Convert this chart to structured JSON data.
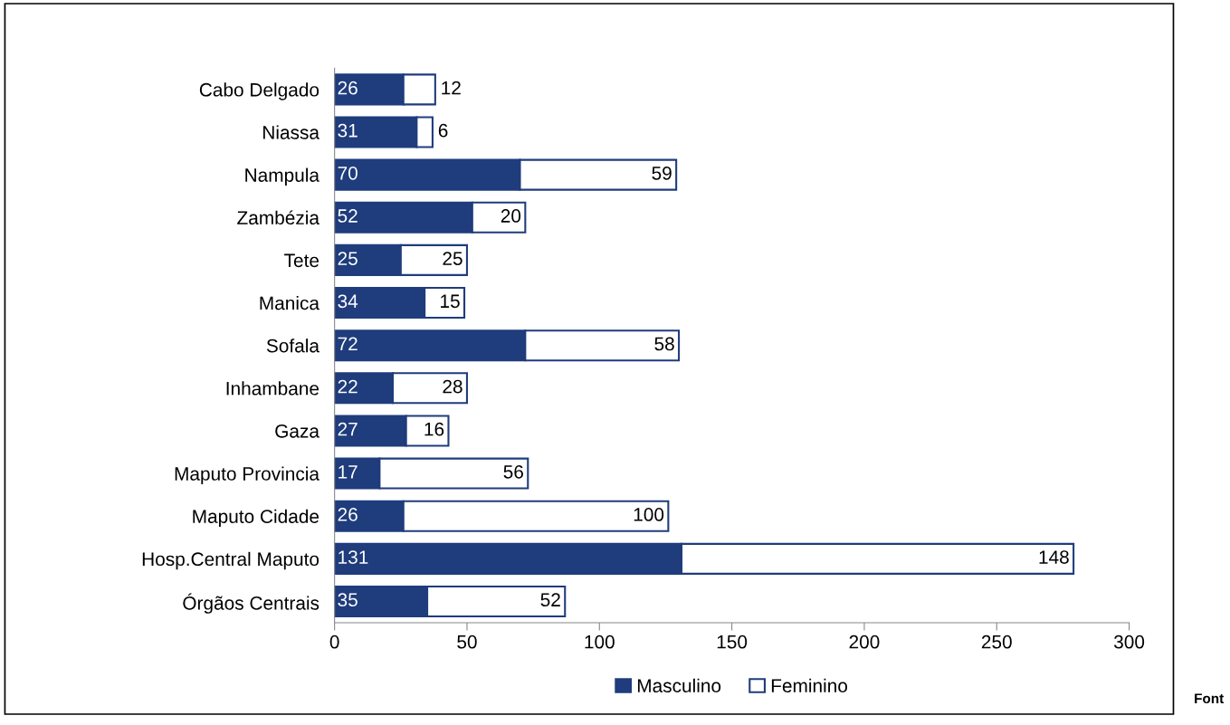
{
  "chart_data": {
    "type": "bar",
    "orientation": "horizontal",
    "stacked": true,
    "categories": [
      "Cabo Delgado",
      "Niassa",
      "Nampula",
      "Zambézia",
      "Tete",
      "Manica",
      "Sofala",
      "Inhambane",
      "Gaza",
      "Maputo Provincia",
      "Maputo Cidade",
      "Hosp.Central Maputo",
      "Órgãos Centrais"
    ],
    "series": [
      {
        "name": "Masculino",
        "color": "#1f3c7c",
        "values": [
          26,
          31,
          70,
          52,
          25,
          34,
          72,
          22,
          27,
          17,
          26,
          131,
          35
        ]
      },
      {
        "name": "Feminino",
        "color": "#ffffff",
        "values": [
          12,
          6,
          59,
          20,
          25,
          15,
          58,
          28,
          16,
          56,
          100,
          148,
          52
        ]
      }
    ],
    "xlim": [
      0,
      300
    ],
    "xticks": [
      0,
      50,
      100,
      150,
      200,
      250,
      300
    ],
    "data_labels": true,
    "grid": false,
    "legend": "bottom",
    "annotations": [
      "Font"
    ]
  }
}
